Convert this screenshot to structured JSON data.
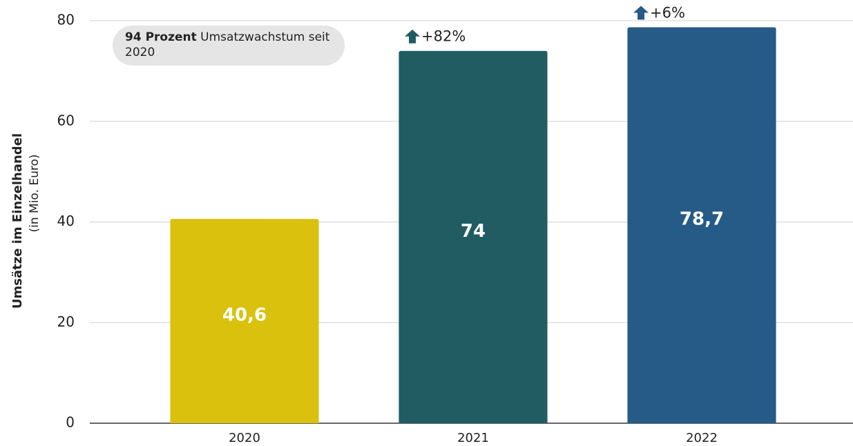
{
  "chart_data": {
    "type": "bar",
    "y_axis_label": "Umsätze im Einzelhandel",
    "y_axis_sublabel": "(in Mio. Euro)",
    "categories": [
      "2020",
      "2021",
      "2022"
    ],
    "values": [
      40.6,
      74,
      78.7
    ],
    "value_labels": [
      "40,6",
      "74",
      "78,7"
    ],
    "colors": [
      "#d9c10d",
      "#225c63",
      "#265b88"
    ],
    "growth_labels": [
      null,
      "+82%",
      "+6%"
    ],
    "badge": {
      "bold": "94 Prozent",
      "text": "Umsatzwachstum seit 2020"
    },
    "ylim": [
      0,
      80
    ],
    "yticks": [
      0,
      20,
      40,
      60,
      80
    ],
    "grid": true
  }
}
